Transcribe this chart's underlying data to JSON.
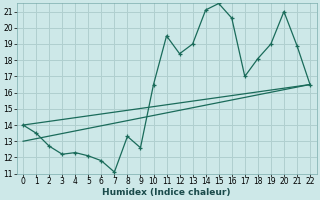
{
  "xlabel": "Humidex (Indice chaleur)",
  "ylabel": "",
  "xlim": [
    -0.5,
    22.5
  ],
  "ylim": [
    11,
    21.5
  ],
  "yticks": [
    11,
    12,
    13,
    14,
    15,
    16,
    17,
    18,
    19,
    20,
    21
  ],
  "xticks": [
    0,
    1,
    2,
    3,
    4,
    5,
    6,
    7,
    8,
    9,
    10,
    11,
    12,
    13,
    14,
    15,
    16,
    17,
    18,
    19,
    20,
    21,
    22
  ],
  "bg_color": "#cde8e8",
  "grid_color": "#b0cfcf",
  "line_color": "#1a6b5a",
  "line1_x": [
    0,
    1,
    2,
    3,
    4,
    5,
    6,
    7,
    8,
    9,
    10,
    11,
    12,
    13,
    14,
    15,
    16,
    17,
    18,
    19,
    20,
    21,
    22
  ],
  "line1_y": [
    14.0,
    13.5,
    12.7,
    12.2,
    12.3,
    12.1,
    11.8,
    11.1,
    13.3,
    12.6,
    16.5,
    19.5,
    18.4,
    19.0,
    21.1,
    21.5,
    20.6,
    17.0,
    18.1,
    19.0,
    21.0,
    18.9,
    16.5
  ],
  "line2_x": [
    0,
    22
  ],
  "line2_y": [
    14.0,
    16.5
  ],
  "line3_x": [
    0,
    22
  ],
  "line3_y": [
    13.0,
    16.5
  ],
  "tick_fontsize": 5.5,
  "xlabel_fontsize": 6.5
}
